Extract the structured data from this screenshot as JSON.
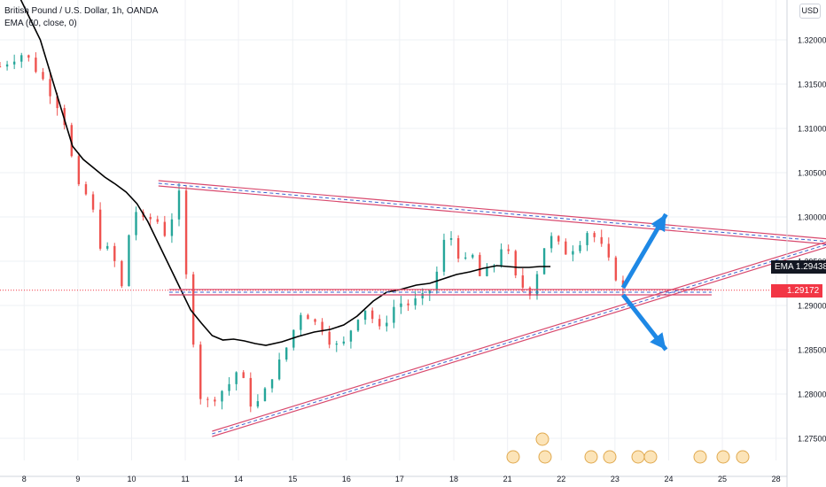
{
  "legend": {
    "title": "British Pound / U.S. Dollar, 1h, OANDA",
    "indicator": "EMA (60, close, 0)"
  },
  "currency_button": "USD",
  "tags": {
    "ema_label": "EMA",
    "ema_value": "1.29438",
    "price_value": "1.29172"
  },
  "colors": {
    "up": "#26a69a",
    "down": "#ef5350",
    "ema": "#000000",
    "trendline": "#d94a6e",
    "trend_dash": "#3a5fcd",
    "arrow": "#1e88e5",
    "price": "#f23645"
  },
  "chart_data": {
    "type": "candlestick",
    "yaxis": {
      "range": [
        1.2725,
        1.3245
      ],
      "ticks": [
        "1.27500",
        "1.28000",
        "1.28500",
        "1.29000",
        "1.29500",
        "1.30000",
        "1.30500",
        "1.31000",
        "1.31500",
        "1.32000"
      ],
      "tick_values": [
        1.275,
        1.28,
        1.285,
        1.29,
        1.295,
        1.3,
        1.305,
        1.31,
        1.315,
        1.32
      ]
    },
    "xaxis": {
      "day_range": [
        7.55,
        21.0
      ],
      "ticks": [
        "8",
        "9",
        "10",
        "11",
        "14",
        "15",
        "16",
        "17",
        "18",
        "21",
        "22",
        "23",
        "24",
        "25",
        "28"
      ],
      "tick_days": [
        8,
        9,
        10,
        11,
        11.99,
        13,
        14,
        14.99,
        16,
        17,
        18,
        19,
        20,
        21,
        22
      ]
    },
    "close_path": [
      [
        7.55,
        1.317
      ],
      [
        7.8,
        1.318
      ],
      [
        8.0,
        1.3185
      ],
      [
        8.3,
        1.316
      ],
      [
        8.6,
        1.313
      ],
      [
        8.8,
        1.31
      ],
      [
        8.95,
        1.304
      ],
      [
        9.1,
        1.302
      ],
      [
        9.2,
        1.303
      ],
      [
        9.4,
        1.297
      ],
      [
        9.6,
        1.296
      ],
      [
        9.75,
        1.294
      ],
      [
        9.85,
        1.291
      ],
      [
        9.95,
        1.298
      ],
      [
        10.1,
        1.301
      ],
      [
        10.25,
        1.299
      ],
      [
        10.45,
        1.3005
      ],
      [
        10.55,
        1.2975
      ],
      [
        10.7,
        1.299
      ],
      [
        10.85,
        1.302
      ],
      [
        10.93,
        1.303
      ],
      [
        11.0,
        1.296
      ],
      [
        11.03,
        1.291
      ],
      [
        11.12,
        1.288
      ],
      [
        11.25,
        1.28
      ],
      [
        11.4,
        1.279
      ],
      [
        11.6,
        1.28
      ],
      [
        11.8,
        1.281
      ],
      [
        12.0,
        1.283
      ],
      [
        12.2,
        1.279
      ],
      [
        12.4,
        1.279
      ],
      [
        12.6,
        1.282
      ],
      [
        12.8,
        1.284
      ],
      [
        13.0,
        1.287
      ],
      [
        13.2,
        1.29
      ],
      [
        13.35,
        1.288
      ],
      [
        13.5,
        1.288
      ],
      [
        13.7,
        1.286
      ],
      [
        13.9,
        1.285
      ],
      [
        14.05,
        1.287
      ],
      [
        14.15,
        1.288
      ],
      [
        14.3,
        1.29
      ],
      [
        14.45,
        1.289
      ],
      [
        14.6,
        1.287
      ],
      [
        14.8,
        1.289
      ],
      [
        14.95,
        1.2905
      ],
      [
        15.1,
        1.29
      ],
      [
        15.3,
        1.2905
      ],
      [
        15.5,
        1.291
      ],
      [
        15.7,
        1.294
      ],
      [
        15.85,
        1.298
      ],
      [
        16.0,
        1.2975
      ],
      [
        16.15,
        1.2945
      ],
      [
        16.35,
        1.2955
      ],
      [
        16.5,
        1.293
      ],
      [
        16.65,
        1.294
      ],
      [
        16.8,
        1.295
      ],
      [
        16.9,
        1.297
      ],
      [
        17.0,
        1.296
      ],
      [
        17.15,
        1.293
      ],
      [
        17.3,
        1.292
      ],
      [
        17.45,
        1.2915
      ],
      [
        17.6,
        1.295
      ],
      [
        17.75,
        1.298
      ],
      [
        17.9,
        1.297
      ],
      [
        18.1,
        1.296
      ],
      [
        18.3,
        1.297
      ],
      [
        18.5,
        1.2985
      ],
      [
        18.65,
        1.2975
      ],
      [
        18.8,
        1.296
      ],
      [
        18.95,
        1.294
      ],
      [
        19.05,
        1.293
      ],
      [
        19.15,
        1.2918
      ]
    ],
    "ema_path": [
      [
        7.9,
        1.325
      ],
      [
        8.1,
        1.3225
      ],
      [
        8.3,
        1.32
      ],
      [
        8.5,
        1.316
      ],
      [
        8.7,
        1.312
      ],
      [
        8.9,
        1.308
      ],
      [
        9.1,
        1.3065
      ],
      [
        9.3,
        1.3055
      ],
      [
        9.5,
        1.3045
      ],
      [
        9.7,
        1.3037
      ],
      [
        9.9,
        1.3028
      ],
      [
        10.1,
        1.3015
      ],
      [
        10.3,
        1.2995
      ],
      [
        10.5,
        1.297
      ],
      [
        10.7,
        1.2945
      ],
      [
        10.9,
        1.292
      ],
      [
        11.1,
        1.2895
      ],
      [
        11.3,
        1.288
      ],
      [
        11.5,
        1.2866
      ],
      [
        11.7,
        1.2861
      ],
      [
        11.9,
        1.2862
      ],
      [
        12.1,
        1.286
      ],
      [
        12.3,
        1.2857
      ],
      [
        12.5,
        1.2855
      ],
      [
        12.8,
        1.2859
      ],
      [
        13.1,
        1.2865
      ],
      [
        13.4,
        1.287
      ],
      [
        13.7,
        1.2873
      ],
      [
        13.95,
        1.2878
      ],
      [
        14.2,
        1.2888
      ],
      [
        14.5,
        1.2905
      ],
      [
        14.75,
        1.2915
      ],
      [
        15.0,
        1.2918
      ],
      [
        15.3,
        1.2923
      ],
      [
        15.55,
        1.2925
      ],
      [
        15.8,
        1.293
      ],
      [
        16.05,
        1.2935
      ],
      [
        16.3,
        1.2938
      ],
      [
        16.55,
        1.2942
      ],
      [
        16.8,
        1.2945
      ],
      [
        17.0,
        1.2944
      ],
      [
        17.2,
        1.2943
      ],
      [
        17.4,
        1.2943
      ],
      [
        17.6,
        1.2944
      ],
      [
        17.8,
        1.2944
      ]
    ],
    "candle_hour_step": 2,
    "trendlines": {
      "upper": [
        [
          10.5,
          1.3038
        ],
        [
          23.0,
          1.2972
        ]
      ],
      "lower": [
        [
          11.5,
          1.2755
        ],
        [
          23.0,
          1.297
        ]
      ],
      "horizontal": [
        [
          10.7,
          1.2915
        ],
        [
          20.8,
          1.2915
        ]
      ]
    },
    "arrows": [
      {
        "from": [
          19.15,
          1.292
        ],
        "to": [
          19.95,
          1.3003
        ]
      },
      {
        "from": [
          19.15,
          1.2912
        ],
        "to": [
          19.95,
          1.285
        ]
      }
    ],
    "ema_last": 1.29438,
    "last_price": 1.29172
  }
}
